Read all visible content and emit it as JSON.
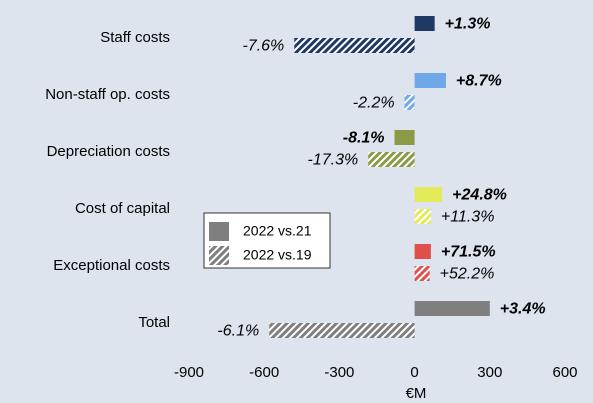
{
  "chart_data": {
    "type": "bar",
    "orientation": "horizontal",
    "categories": [
      "Staff costs",
      "Non-staff op. costs",
      "Depreciation costs",
      "Cost of capital",
      "Exceptional costs",
      "Total"
    ],
    "category_colors": [
      "#1f3864",
      "#6fa8e6",
      "#8b9a46",
      "#e2ea5a",
      "#e0504a",
      "#7f7f7f"
    ],
    "series": [
      {
        "name": "2022 vs.21",
        "color": "#7f7f7f",
        "pattern": "solid",
        "values": [
          80,
          125,
          -80,
          110,
          65,
          300
        ],
        "labels": [
          "+1.3%",
          "+8.7%",
          "-8.1%",
          "+24.8%",
          "+71.5%",
          "+3.4%"
        ]
      },
      {
        "name": "2022 vs.19",
        "color": "#7f7f7f",
        "pattern": "hatched",
        "values": [
          -480,
          -40,
          -185,
          65,
          60,
          -580
        ],
        "labels": [
          "-7.6%",
          "-2.2%",
          "-17.3%",
          "+11.3%",
          "+52.2%",
          "-6.1%"
        ]
      }
    ],
    "xlabel": "€M",
    "xlim": [
      -900,
      600
    ],
    "xticks": [
      -900,
      -600,
      -300,
      0,
      300,
      600
    ],
    "grid": false
  }
}
